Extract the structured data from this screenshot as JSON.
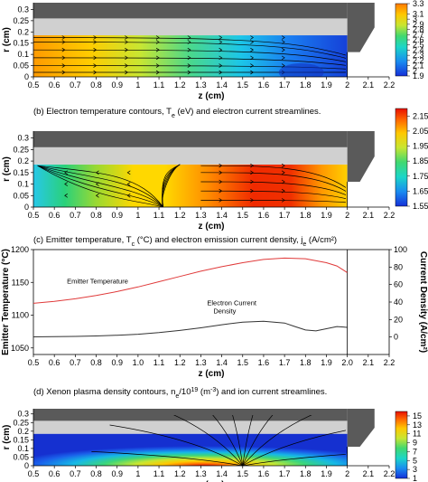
{
  "chart_data": [
    {
      "type": "heatmap",
      "panel": "a",
      "caption": "",
      "xlabel": "z (cm)",
      "ylabel": "r (cm)",
      "xlim": [
        0.5,
        2.2
      ],
      "ylim": [
        0,
        0.33
      ],
      "xticks": [
        "0.5",
        "0.6",
        "0.7",
        "0.8",
        "0.9",
        "1",
        "1.1",
        "1.2",
        "1.3",
        "1.4",
        "1.5",
        "1.6",
        "1.7",
        "1.8",
        "1.9",
        "2",
        "2.1",
        "2.2"
      ],
      "yticks": [
        "0",
        "0.05",
        "0.1",
        "0.15",
        "0.2",
        "0.25",
        "0.3"
      ],
      "colorbar": {
        "ticks": [
          "1.9",
          "2",
          "2.1",
          "2.2",
          "2.3",
          "2.4",
          "2.5",
          "2.6",
          "2.7",
          "2.8",
          "2.9",
          "3",
          "3.1",
          "3.2",
          "3.3"
        ],
        "min": 1.9,
        "max": 3.3,
        "visible_from": 1.9,
        "visible_to": 3.3,
        "visible_labels": [
          "1.9",
          "2",
          "2.1",
          "2.2",
          "2.3",
          "2.4",
          "2.5",
          "2.6",
          "2.7",
          "2.8",
          "2.9",
          "3",
          "3.1",
          "3.3"
        ]
      },
      "field": {
        "z_hot": 0.5,
        "z_cold": 1.8,
        "hot_value": 3.3,
        "cold_value": 1.9
      },
      "streamlines": "flow from left wall toward orifice (z = 2)"
    },
    {
      "type": "heatmap",
      "panel": "b",
      "caption": "(b) Electron temperature contours, T",
      "caption_sub": "e",
      "caption_rest": " (eV) and electron current streamlines.",
      "xlabel": "z (cm)",
      "ylabel": "r (cm)",
      "xlim": [
        0.5,
        2.2
      ],
      "ylim": [
        0,
        0.33
      ],
      "xticks": [
        "0.5",
        "0.6",
        "0.7",
        "0.8",
        "0.9",
        "1",
        "1.1",
        "1.2",
        "1.3",
        "1.4",
        "1.5",
        "1.6",
        "1.7",
        "1.8",
        "1.9",
        "2",
        "2.1",
        "2.2"
      ],
      "yticks": [
        "0",
        "0.05",
        "0.1",
        "0.15",
        "0.2",
        "0.25",
        "0.3"
      ],
      "colorbar": {
        "ticks": [
          "1.55",
          "1.65",
          "1.75",
          "1.85",
          "1.95",
          "2.05",
          "2.15"
        ],
        "min": 1.55,
        "max": 2.2
      }
    },
    {
      "type": "line",
      "panel": "c",
      "caption": "(c) Emitter temperature, T",
      "caption_sub": "c",
      "caption_mid": " (°C) and electron emission current density, j",
      "caption_sub2": "e",
      "caption_rest": " (A/cm²)",
      "xlabel": "z (cm)",
      "ylabel_left": "Emitter Temperature (°C)",
      "ylabel_right": "Current Density (A/cm²)",
      "xlim": [
        0.5,
        2.2
      ],
      "ylim_left": [
        1040,
        1200
      ],
      "ylim_right": [
        -20,
        100
      ],
      "xticks": [
        "0.5",
        "0.6",
        "0.7",
        "0.8",
        "0.9",
        "1.0",
        "1.1",
        "1.2",
        "1.3",
        "1.4",
        "1.5",
        "1.6",
        "1.7",
        "1.8",
        "1.9",
        "2.0",
        "2.1",
        "2.2"
      ],
      "yticks_left": [
        "1050",
        "1100",
        "1150",
        "1200"
      ],
      "yticks_right": [
        "0",
        "20",
        "40",
        "60",
        "80",
        "100"
      ],
      "series": [
        {
          "name": "Emitter Temperature",
          "axis": "left",
          "color": "#e03a3a",
          "x": [
            0.5,
            0.6,
            0.7,
            0.8,
            0.9,
            1.0,
            1.1,
            1.2,
            1.3,
            1.4,
            1.5,
            1.6,
            1.7,
            1.8,
            1.9,
            1.95,
            2.0
          ],
          "y": [
            1118,
            1121,
            1125,
            1130,
            1136,
            1143,
            1151,
            1159,
            1167,
            1174,
            1180,
            1185,
            1187,
            1186,
            1180,
            1175,
            1165
          ]
        },
        {
          "name": "Electron Current Density",
          "axis": "right",
          "color": "#333333",
          "x": [
            0.5,
            0.6,
            0.7,
            0.8,
            0.9,
            1.0,
            1.1,
            1.2,
            1.3,
            1.4,
            1.5,
            1.6,
            1.7,
            1.75,
            1.8,
            1.85,
            1.9,
            1.95,
            2.0
          ],
          "y": [
            0.2,
            0.4,
            0.7,
            1.2,
            2.0,
            3.2,
            5.0,
            7.5,
            10.5,
            14.0,
            17.0,
            18.0,
            16.0,
            12.0,
            8.0,
            7.0,
            9.5,
            12.0,
            11.0
          ]
        }
      ],
      "annotations": [
        "Emitter Temperature",
        "Electron Current",
        "Density"
      ]
    },
    {
      "type": "heatmap",
      "panel": "d",
      "caption": "(d) Xenon plasma density contours, n",
      "caption_sub": "e",
      "caption_mid": "/10",
      "caption_sup": "19",
      "caption_rest": " (m",
      "caption_sup2": "-3",
      "caption_end": ") and ion current streamlines.",
      "xlabel": "z (cm)",
      "ylabel": "r (cm)",
      "xlim": [
        0.5,
        2.2
      ],
      "ylim": [
        0,
        0.33
      ],
      "xticks": [
        "0.5",
        "0.6",
        "0.7",
        "0.8",
        "0.9",
        "1",
        "1.1",
        "1.2",
        "1.3",
        "1.4",
        "1.5",
        "1.6",
        "1.7",
        "1.8",
        "1.9",
        "2",
        "2.1",
        "2.2"
      ],
      "yticks": [
        "0",
        "0.05",
        "0.1",
        "0.15",
        "0.2",
        "0.25",
        "0.3"
      ],
      "colorbar": {
        "ticks": [
          "1",
          "3",
          "5",
          "7",
          "9",
          "11",
          "13",
          "15"
        ],
        "min": 1,
        "max": 16
      }
    }
  ]
}
